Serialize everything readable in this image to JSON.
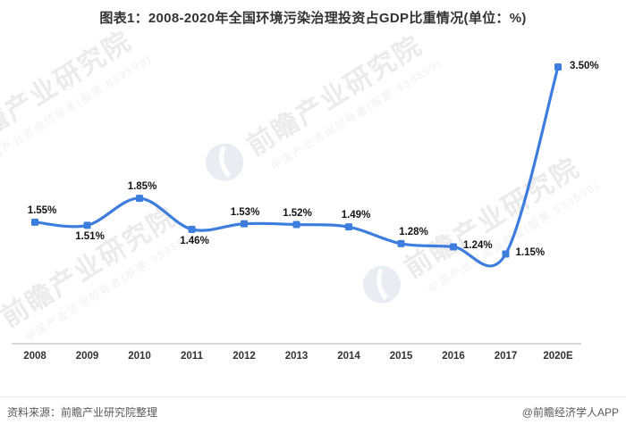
{
  "footer": {
    "source": "资料来源：前瞻产业研究院整理",
    "brand": "@前瞻经济学人APP"
  },
  "watermark": {
    "name": "前瞻产业研究院",
    "subtitle": "中国产业咨询领导者(股票:839599)",
    "logo": "qianzhan-logo",
    "text_color": "#ebebeb",
    "logo_color": "#e8ecf3"
  },
  "colors": {
    "line": "#3D7DDE",
    "axis": "#d9d9d9",
    "title_text": "#333333",
    "data_label_text": "#141414",
    "footer_text": "#595959"
  },
  "chart_data": {
    "type": "line",
    "title": "图表1：2008-2020年全国环境污染治理投资占GDP比重情况(单位：%)",
    "unit": "%",
    "categories": [
      "2008",
      "2009",
      "2010",
      "2011",
      "2012",
      "2013",
      "2014",
      "2015",
      "2016",
      "2017",
      "2020E"
    ],
    "values": [
      1.55,
      1.51,
      1.85,
      1.46,
      1.53,
      1.52,
      1.49,
      1.28,
      1.24,
      1.15,
      3.5
    ],
    "labels": [
      "1.55%",
      "1.51%",
      "1.85%",
      "1.46%",
      "1.53%",
      "1.52%",
      "1.49%",
      "1.28%",
      "1.24%",
      "1.15%",
      "3.50%"
    ],
    "label_pos": [
      "above",
      "below",
      "above",
      "below",
      "above",
      "above",
      "above",
      "above",
      "right",
      "right",
      "right"
    ],
    "label_dx": [
      8,
      3,
      3,
      3,
      1,
      1,
      8,
      14,
      11,
      11,
      13
    ],
    "ylim": [
      0,
      3.9
    ],
    "xlabel": "",
    "ylabel": "",
    "grid": false,
    "legend": "none",
    "y_axis_visible": false,
    "marker": "square",
    "line_smooth": true
  }
}
